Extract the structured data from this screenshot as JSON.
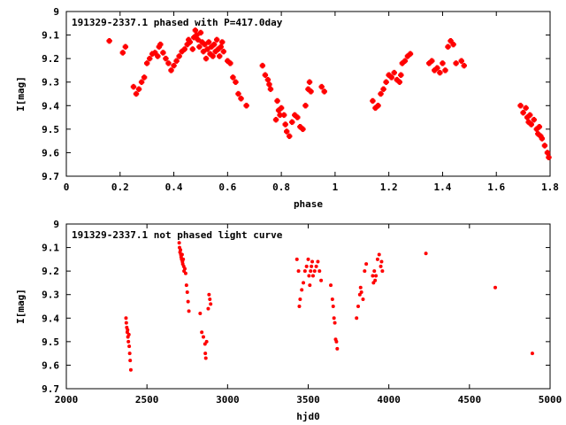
{
  "chart_data": [
    {
      "type": "scatter",
      "title": "191329-2337.1 phased with P=417.0day",
      "xlabel": "phase",
      "ylabel": "I[mag]",
      "xlim": [
        0,
        1.8
      ],
      "ylim": [
        9.7,
        9
      ],
      "y_inverted": true,
      "grid": false,
      "marker": "cross",
      "color": "#ff0000",
      "xticks": [
        "0",
        "0.2",
        "0.4",
        "0.6",
        "0.8",
        "1",
        "1.2",
        "1.4",
        "1.6",
        "1.8"
      ],
      "yticks": [
        "9",
        "9.1",
        "9.2",
        "9.3",
        "9.4",
        "9.5",
        "9.6",
        "9.7"
      ],
      "points": [
        [
          0.16,
          9.125
        ],
        [
          0.21,
          9.175
        ],
        [
          0.22,
          9.15
        ],
        [
          0.25,
          9.32
        ],
        [
          0.26,
          9.35
        ],
        [
          0.27,
          9.33
        ],
        [
          0.28,
          9.3
        ],
        [
          0.29,
          9.28
        ],
        [
          0.3,
          9.22
        ],
        [
          0.31,
          9.2
        ],
        [
          0.32,
          9.18
        ],
        [
          0.33,
          9.175
        ],
        [
          0.34,
          9.19
        ],
        [
          0.345,
          9.15
        ],
        [
          0.35,
          9.14
        ],
        [
          0.36,
          9.175
        ],
        [
          0.37,
          9.2
        ],
        [
          0.38,
          9.22
        ],
        [
          0.39,
          9.25
        ],
        [
          0.4,
          9.23
        ],
        [
          0.41,
          9.21
        ],
        [
          0.42,
          9.19
        ],
        [
          0.43,
          9.17
        ],
        [
          0.44,
          9.16
        ],
        [
          0.45,
          9.14
        ],
        [
          0.455,
          9.12
        ],
        [
          0.46,
          9.13
        ],
        [
          0.47,
          9.16
        ],
        [
          0.475,
          9.11
        ],
        [
          0.48,
          9.08
        ],
        [
          0.485,
          9.1
        ],
        [
          0.49,
          9.12
        ],
        [
          0.495,
          9.15
        ],
        [
          0.5,
          9.09
        ],
        [
          0.505,
          9.13
        ],
        [
          0.51,
          9.17
        ],
        [
          0.515,
          9.14
        ],
        [
          0.52,
          9.2
        ],
        [
          0.525,
          9.16
        ],
        [
          0.53,
          9.13
        ],
        [
          0.535,
          9.18
        ],
        [
          0.54,
          9.15
        ],
        [
          0.545,
          9.19
        ],
        [
          0.55,
          9.14
        ],
        [
          0.555,
          9.17
        ],
        [
          0.56,
          9.12
        ],
        [
          0.565,
          9.16
        ],
        [
          0.57,
          9.19
        ],
        [
          0.575,
          9.15
        ],
        [
          0.58,
          9.13
        ],
        [
          0.585,
          9.17
        ],
        [
          0.6,
          9.21
        ],
        [
          0.61,
          9.22
        ],
        [
          0.62,
          9.28
        ],
        [
          0.63,
          9.3
        ],
        [
          0.64,
          9.35
        ],
        [
          0.65,
          9.37
        ],
        [
          0.67,
          9.4
        ],
        [
          0.73,
          9.23
        ],
        [
          0.74,
          9.27
        ],
        [
          0.75,
          9.29
        ],
        [
          0.755,
          9.31
        ],
        [
          0.76,
          9.33
        ],
        [
          0.78,
          9.46
        ],
        [
          0.785,
          9.38
        ],
        [
          0.79,
          9.42
        ],
        [
          0.795,
          9.44
        ],
        [
          0.8,
          9.41
        ],
        [
          0.81,
          9.44
        ],
        [
          0.815,
          9.48
        ],
        [
          0.82,
          9.51
        ],
        [
          0.83,
          9.53
        ],
        [
          0.84,
          9.47
        ],
        [
          0.85,
          9.44
        ],
        [
          0.86,
          9.45
        ],
        [
          0.87,
          9.49
        ],
        [
          0.88,
          9.5
        ],
        [
          0.89,
          9.4
        ],
        [
          0.9,
          9.33
        ],
        [
          0.905,
          9.3
        ],
        [
          0.91,
          9.34
        ],
        [
          0.95,
          9.32
        ],
        [
          0.96,
          9.34
        ],
        [
          1.14,
          9.38
        ],
        [
          1.15,
          9.41
        ],
        [
          1.16,
          9.4
        ],
        [
          1.17,
          9.35
        ],
        [
          1.18,
          9.33
        ],
        [
          1.19,
          9.3
        ],
        [
          1.2,
          9.27
        ],
        [
          1.21,
          9.28
        ],
        [
          1.22,
          9.26
        ],
        [
          1.23,
          9.29
        ],
        [
          1.24,
          9.3
        ],
        [
          1.245,
          9.27
        ],
        [
          1.25,
          9.22
        ],
        [
          1.26,
          9.21
        ],
        [
          1.27,
          9.19
        ],
        [
          1.28,
          9.18
        ],
        [
          1.35,
          9.22
        ],
        [
          1.36,
          9.21
        ],
        [
          1.37,
          9.25
        ],
        [
          1.38,
          9.24
        ],
        [
          1.39,
          9.26
        ],
        [
          1.4,
          9.22
        ],
        [
          1.41,
          9.25
        ],
        [
          1.42,
          9.15
        ],
        [
          1.43,
          9.125
        ],
        [
          1.44,
          9.14
        ],
        [
          1.45,
          9.22
        ],
        [
          1.47,
          9.21
        ],
        [
          1.48,
          9.23
        ],
        [
          1.69,
          9.4
        ],
        [
          1.7,
          9.43
        ],
        [
          1.71,
          9.41
        ],
        [
          1.715,
          9.45
        ],
        [
          1.72,
          9.47
        ],
        [
          1.725,
          9.44
        ],
        [
          1.73,
          9.48
        ],
        [
          1.74,
          9.46
        ],
        [
          1.75,
          9.5
        ],
        [
          1.755,
          9.52
        ],
        [
          1.76,
          9.49
        ],
        [
          1.765,
          9.53
        ],
        [
          1.77,
          9.54
        ],
        [
          1.78,
          9.57
        ],
        [
          1.79,
          9.6
        ],
        [
          1.795,
          9.62
        ]
      ]
    },
    {
      "type": "scatter",
      "title": "191329-2337.1 not phased light curve",
      "xlabel": "hjd0",
      "ylabel": "I[mag]",
      "xlim": [
        2000,
        5000
      ],
      "ylim": [
        9.7,
        9
      ],
      "y_inverted": true,
      "grid": false,
      "marker": "dot",
      "color": "#ff0000",
      "xticks": [
        "2000",
        "2500",
        "3000",
        "3500",
        "4000",
        "4500",
        "5000"
      ],
      "yticks": [
        "9",
        "9.1",
        "9.2",
        "9.3",
        "9.4",
        "9.5",
        "9.6",
        "9.7"
      ],
      "points": [
        [
          2370,
          9.4
        ],
        [
          2372,
          9.42
        ],
        [
          2375,
          9.44
        ],
        [
          2378,
          9.46
        ],
        [
          2380,
          9.45
        ],
        [
          2382,
          9.48
        ],
        [
          2385,
          9.5
        ],
        [
          2388,
          9.47
        ],
        [
          2390,
          9.52
        ],
        [
          2393,
          9.55
        ],
        [
          2396,
          9.58
        ],
        [
          2400,
          9.62
        ],
        [
          2700,
          9.08
        ],
        [
          2702,
          9.1
        ],
        [
          2705,
          9.12
        ],
        [
          2708,
          9.11
        ],
        [
          2710,
          9.13
        ],
        [
          2712,
          9.14
        ],
        [
          2715,
          9.15
        ],
        [
          2718,
          9.13
        ],
        [
          2720,
          9.16
        ],
        [
          2722,
          9.17
        ],
        [
          2725,
          9.15
        ],
        [
          2728,
          9.18
        ],
        [
          2730,
          9.2
        ],
        [
          2735,
          9.19
        ],
        [
          2740,
          9.21
        ],
        [
          2745,
          9.26
        ],
        [
          2750,
          9.29
        ],
        [
          2755,
          9.33
        ],
        [
          2760,
          9.37
        ],
        [
          2830,
          9.38
        ],
        [
          2840,
          9.46
        ],
        [
          2850,
          9.48
        ],
        [
          2860,
          9.51
        ],
        [
          2862,
          9.55
        ],
        [
          2865,
          9.57
        ],
        [
          2870,
          9.5
        ],
        [
          2880,
          9.36
        ],
        [
          2885,
          9.3
        ],
        [
          2890,
          9.32
        ],
        [
          2895,
          9.34
        ],
        [
          3430,
          9.15
        ],
        [
          3440,
          9.2
        ],
        [
          3445,
          9.35
        ],
        [
          3450,
          9.32
        ],
        [
          3460,
          9.28
        ],
        [
          3470,
          9.25
        ],
        [
          3480,
          9.2
        ],
        [
          3490,
          9.18
        ],
        [
          3500,
          9.15
        ],
        [
          3505,
          9.22
        ],
        [
          3510,
          9.26
        ],
        [
          3515,
          9.2
        ],
        [
          3520,
          9.18
        ],
        [
          3525,
          9.16
        ],
        [
          3530,
          9.22
        ],
        [
          3540,
          9.2
        ],
        [
          3550,
          9.18
        ],
        [
          3560,
          9.16
        ],
        [
          3570,
          9.2
        ],
        [
          3580,
          9.24
        ],
        [
          3640,
          9.26
        ],
        [
          3650,
          9.32
        ],
        [
          3655,
          9.35
        ],
        [
          3660,
          9.4
        ],
        [
          3665,
          9.42
        ],
        [
          3670,
          9.49
        ],
        [
          3675,
          9.5
        ],
        [
          3680,
          9.53
        ],
        [
          3800,
          9.4
        ],
        [
          3810,
          9.35
        ],
        [
          3820,
          9.3
        ],
        [
          3825,
          9.27
        ],
        [
          3830,
          9.29
        ],
        [
          3840,
          9.32
        ],
        [
          3850,
          9.2
        ],
        [
          3860,
          9.17
        ],
        [
          3900,
          9.22
        ],
        [
          3905,
          9.25
        ],
        [
          3910,
          9.2
        ],
        [
          3915,
          9.24
        ],
        [
          3920,
          9.22
        ],
        [
          3930,
          9.15
        ],
        [
          3940,
          9.13
        ],
        [
          3950,
          9.18
        ],
        [
          3955,
          9.16
        ],
        [
          3960,
          9.2
        ],
        [
          4230,
          9.125
        ],
        [
          4660,
          9.27
        ],
        [
          4890,
          9.55
        ]
      ]
    }
  ]
}
